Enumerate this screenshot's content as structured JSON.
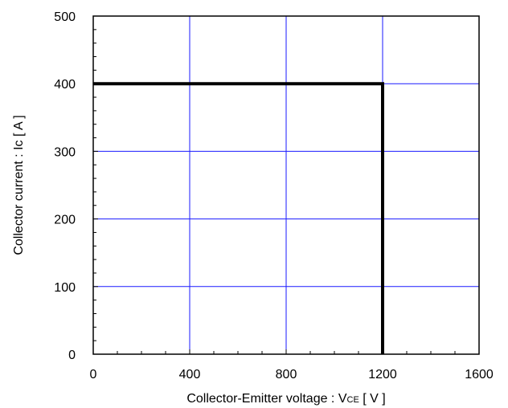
{
  "chart_data": {
    "type": "line",
    "title": "",
    "xlabel": {
      "main": "Collector-Emitter voltage : V",
      "sub": "CE",
      "unit": " [ V ]"
    },
    "ylabel": "Collector current : Ic [ A ]",
    "xlim": [
      0,
      1600
    ],
    "ylim": [
      0,
      500
    ],
    "x_ticks": [
      0,
      400,
      800,
      1200,
      1600
    ],
    "y_ticks": [
      0,
      100,
      200,
      300,
      400,
      500
    ],
    "x_tick_labels": [
      "0",
      "400",
      "800",
      "1200",
      "1600"
    ],
    "y_tick_labels": [
      "0",
      "100",
      "200",
      "300",
      "400",
      "500"
    ],
    "x_minor_step": 100,
    "y_minor_step": 20,
    "grid": true,
    "grid_color": "#1a1aff",
    "line_color": "#000000",
    "series": [
      {
        "x": [
          0,
          1200,
          1200
        ],
        "y": [
          400,
          400,
          0
        ]
      }
    ]
  }
}
